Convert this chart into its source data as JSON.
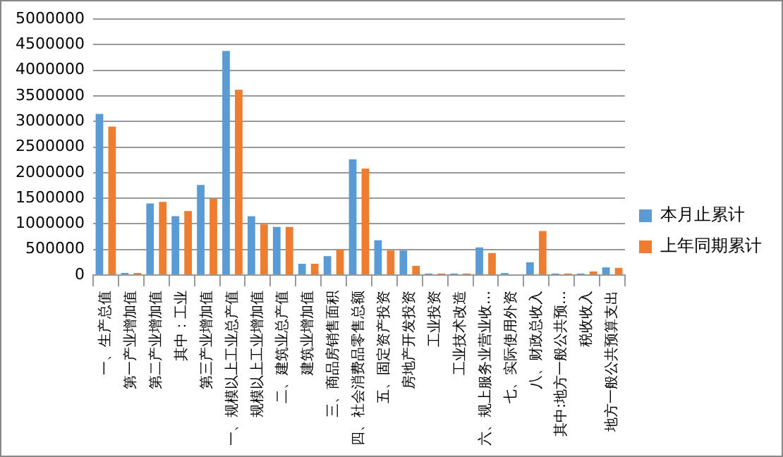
{
  "chart_data": {
    "type": "bar",
    "categories": [
      "一、生产总值",
      "第一产业增加值",
      "第二产业增加值",
      "其中：工业",
      "第三产业增加值",
      "一、规模以上工业总产值",
      "规模以上工业增加值",
      "二、建筑业总产值",
      "建筑业增加值",
      "三、商品房销售面积",
      "四、社会消费品零售总额",
      "五、固定资产投资",
      "房地产开发投资",
      "工业投资",
      "工业技术改造",
      "六、规上服务业营业收…",
      "七、实际使用外资",
      "八、财政总收入",
      "其中:地方一般公共预…",
      "税收收入",
      "地方一般公共预算支出"
    ],
    "series": [
      {
        "name": "本月止累计",
        "color": "#5b9bd5",
        "values": [
          3150000,
          40000,
          1400000,
          1150000,
          1760000,
          4380000,
          1150000,
          940000,
          220000,
          370000,
          2260000,
          680000,
          480000,
          30000,
          30000,
          540000,
          40000,
          250000,
          30000,
          30000,
          150000
        ]
      },
      {
        "name": "上年同期累计",
        "color": "#ed7d31",
        "values": [
          2900000,
          40000,
          1430000,
          1250000,
          1490000,
          3620000,
          990000,
          940000,
          220000,
          500000,
          2080000,
          480000,
          180000,
          30000,
          30000,
          430000,
          0,
          860000,
          30000,
          70000,
          140000
        ]
      }
    ],
    "ylim": [
      0,
      5000000
    ],
    "yticks": [
      0,
      500000,
      1000000,
      1500000,
      2000000,
      2500000,
      3000000,
      3500000,
      4000000,
      4500000,
      5000000
    ],
    "grid": "y",
    "legend": "right"
  }
}
